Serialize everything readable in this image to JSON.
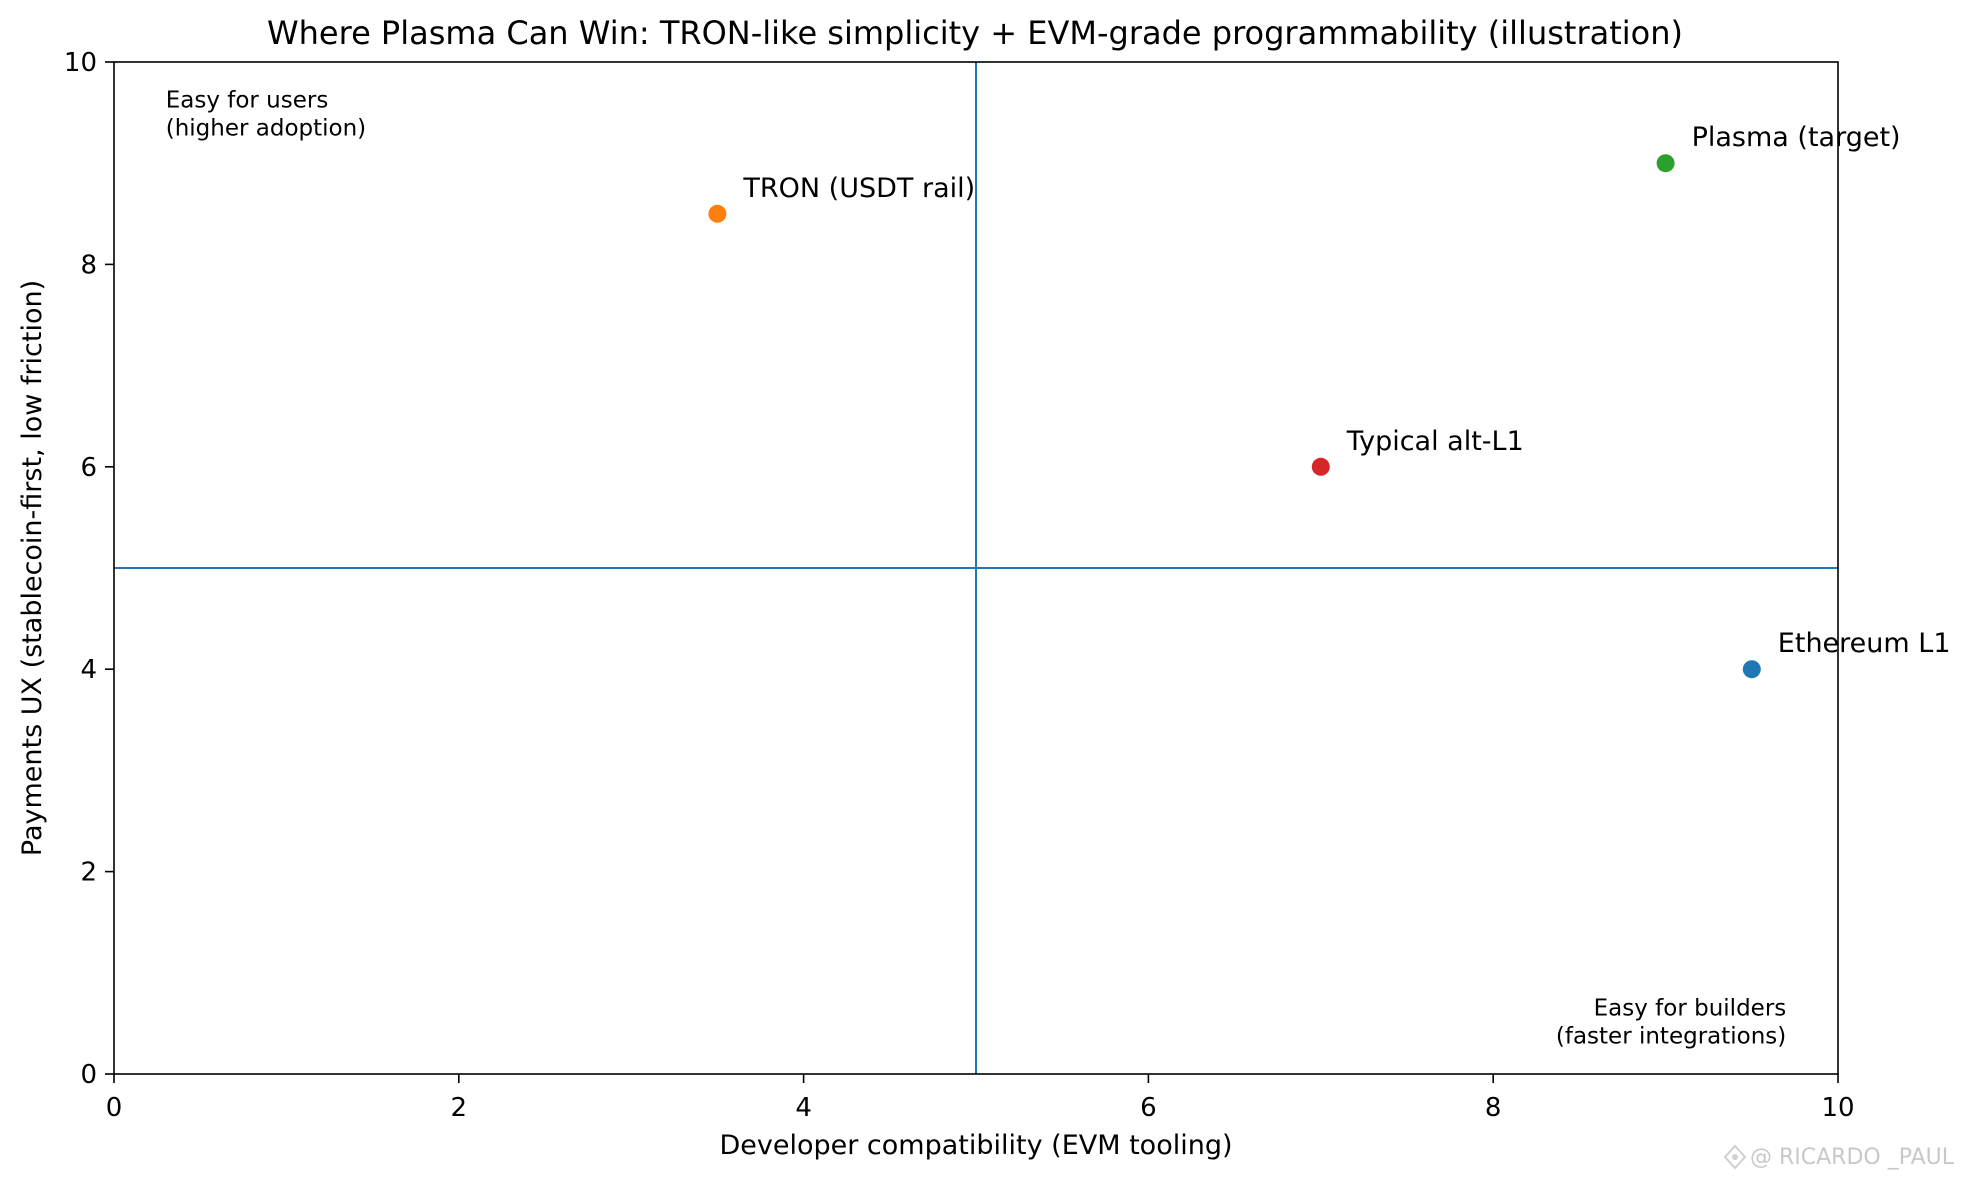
{
  "chart_data": {
    "type": "scatter",
    "title": "Where Plasma Can Win: TRON-like simplicity + EVM-grade programmability (illustration)",
    "xlabel": "Developer compatibility (EVM tooling)",
    "ylabel": "Payments UX (stablecoin-first, low friction)",
    "xlim": [
      0,
      10
    ],
    "ylim": [
      0,
      10
    ],
    "xticks": [
      0,
      2,
      4,
      6,
      8,
      10
    ],
    "yticks": [
      0,
      2,
      4,
      6,
      8,
      10
    ],
    "grid": false,
    "reference_lines": {
      "x": 5,
      "y": 5,
      "color": "#1f77b4"
    },
    "points": [
      {
        "label": "Ethereum L1",
        "x": 9.5,
        "y": 4.0,
        "color": "#1f77b4"
      },
      {
        "label": "TRON (USDT rail)",
        "x": 3.5,
        "y": 8.5,
        "color": "#ff7f0e"
      },
      {
        "label": "Plasma (target)",
        "x": 9.0,
        "y": 9.0,
        "color": "#2ca02c"
      },
      {
        "label": "Typical alt-L1",
        "x": 7.0,
        "y": 6.0,
        "color": "#d62728"
      }
    ],
    "annotations": [
      {
        "lines": [
          "Easy for users",
          "(higher adoption)"
        ],
        "x": 0.3,
        "y": 9.55,
        "align": "left"
      },
      {
        "lines": [
          "Easy for builders",
          "(faster integrations)"
        ],
        "x": 9.7,
        "y": 0.3,
        "align": "right"
      }
    ]
  },
  "watermark": "@ RICARDO _PAUL"
}
